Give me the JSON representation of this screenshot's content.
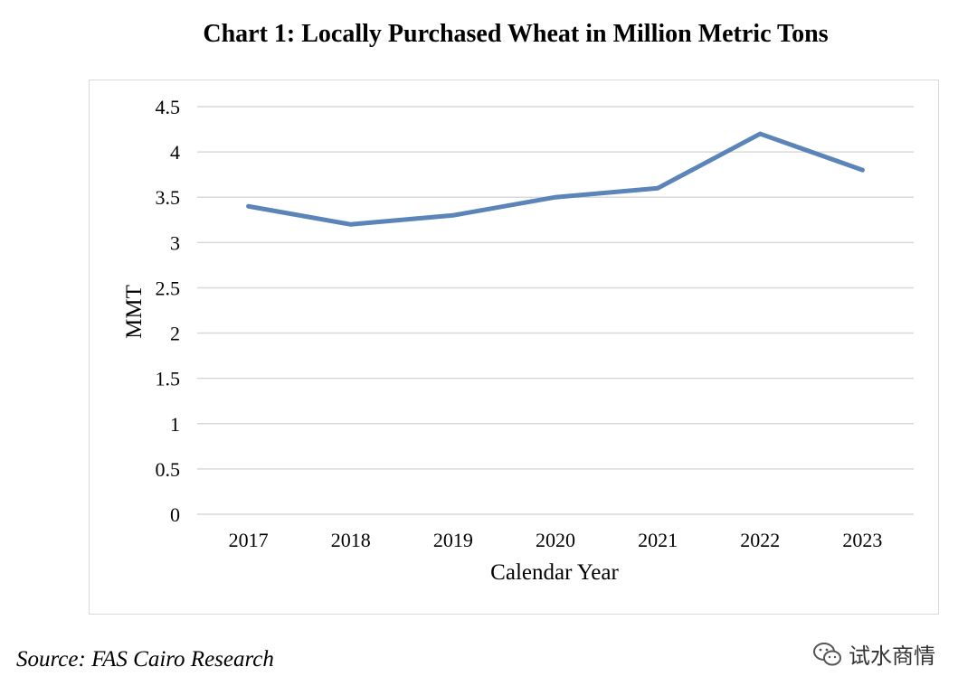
{
  "title": "Chart 1: Locally Purchased Wheat in Million Metric Tons",
  "source": "Source: FAS Cairo Research",
  "watermark": {
    "text": "试水商情",
    "icon": "wechat-icon"
  },
  "colors": {
    "line": "#5b84b8",
    "grid": "#d9d9d9",
    "frame": "#d9d9d9"
  },
  "chart_data": {
    "type": "line",
    "title": "Chart 1: Locally Purchased Wheat in Million Metric Tons",
    "xlabel": "Calendar Year",
    "ylabel": "MMT",
    "categories": [
      "2017",
      "2018",
      "2019",
      "2020",
      "2021",
      "2022",
      "2023"
    ],
    "values": [
      3.4,
      3.2,
      3.3,
      3.5,
      3.6,
      4.2,
      3.8
    ],
    "ylim": [
      0,
      4.5
    ],
    "yticks": [
      "0",
      "0.5",
      "1",
      "1.5",
      "2",
      "2.5",
      "3",
      "3.5",
      "4",
      "4.5"
    ],
    "grid": true,
    "legend": "none"
  }
}
